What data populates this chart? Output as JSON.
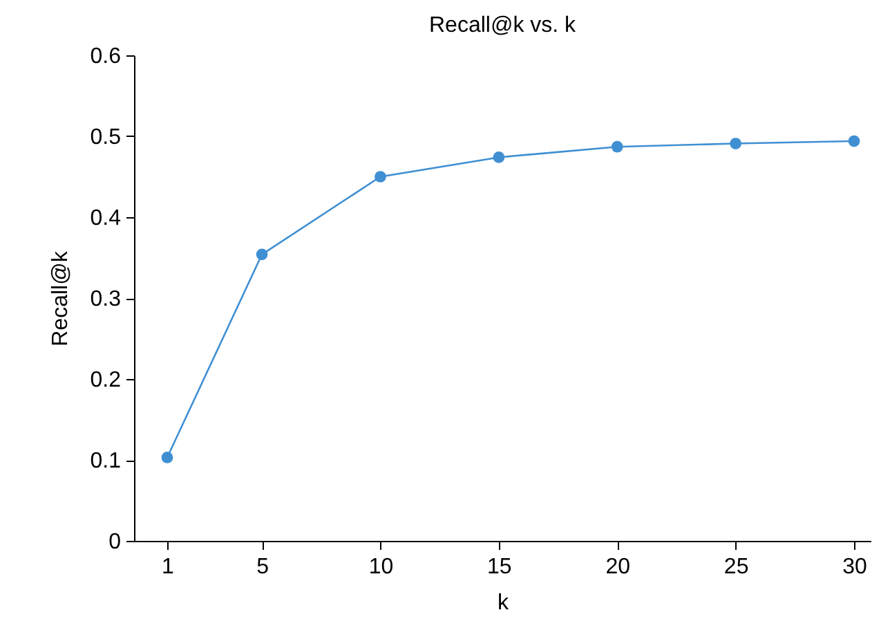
{
  "chart_data": {
    "type": "line",
    "title": "Recall@k vs. k",
    "xlabel": "k",
    "ylabel": "Recall@k",
    "x": [
      1,
      5,
      10,
      15,
      20,
      25,
      30
    ],
    "series": [
      {
        "color": "#3f8fd2",
        "values": [
          0.103,
          0.354,
          0.45,
          0.474,
          0.487,
          0.491,
          0.494
        ]
      }
    ],
    "xlim": [
      -0.4,
      30.7
    ],
    "xticks": [
      1,
      5,
      10,
      15,
      20,
      25,
      30
    ],
    "ylim": [
      0,
      0.6
    ],
    "yticks": [
      0,
      0.1,
      0.2,
      0.3,
      0.4,
      0.5,
      0.6
    ],
    "grid": false,
    "marker": "circle",
    "line_style": "solid"
  }
}
